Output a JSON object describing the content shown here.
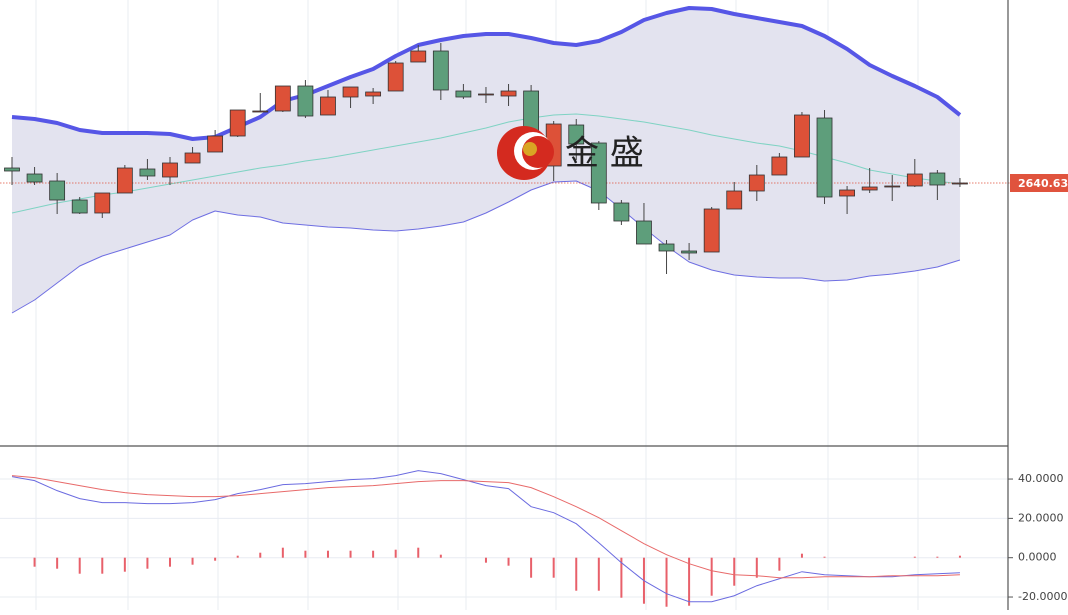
{
  "chart_data": [
    {
      "type": "candlestick",
      "watermark": "金 盛",
      "open": [
        2644.38,
        2642.88,
        2641.13,
        2636.38,
        2633.13,
        2638.13,
        2644.13,
        2642.13,
        2645.63,
        2648.38,
        2652.38,
        2658.38,
        2658.63,
        2664.88,
        2657.63,
        2662.13,
        2662.38,
        2663.63,
        2670.88,
        2673.63,
        2663.63,
        2662.63,
        2662.38,
        2663.63,
        2644.88,
        2655.13,
        2650.63,
        2635.63,
        2631.13,
        2625.38,
        2623.63,
        2623.38,
        2634.13,
        2638.63,
        2642.63,
        2647.13,
        2656.88,
        2637.38,
        2638.88,
        2639.63,
        2639.88,
        2643.13,
        2640.38
      ],
      "high": [
        2647.13,
        2644.63,
        2643.13,
        2637.13,
        2638.13,
        2645.13,
        2646.63,
        2647.13,
        2649.63,
        2653.88,
        2658.88,
        2663.13,
        2664.88,
        2666.38,
        2663.88,
        2664.63,
        2664.38,
        2671.13,
        2675.13,
        2675.63,
        2665.38,
        2664.63,
        2665.38,
        2665.13,
        2656.13,
        2656.63,
        2651.13,
        2636.38,
        2635.63,
        2626.38,
        2625.63,
        2634.63,
        2640.88,
        2645.13,
        2648.13,
        2658.38,
        2658.88,
        2639.88,
        2644.38,
        2642.63,
        2646.63,
        2643.88,
        2641.88
      ],
      "low": [
        2640.13,
        2640.13,
        2632.88,
        2632.88,
        2631.88,
        2638.13,
        2641.38,
        2640.13,
        2645.63,
        2648.38,
        2652.13,
        2658.38,
        2658.38,
        2656.88,
        2657.63,
        2659.38,
        2660.38,
        2663.63,
        2670.88,
        2661.38,
        2661.63,
        2660.63,
        2659.88,
        2644.88,
        2641.13,
        2646.38,
        2633.88,
        2630.13,
        2625.38,
        2617.88,
        2621.38,
        2623.38,
        2634.13,
        2636.13,
        2642.63,
        2647.13,
        2635.38,
        2632.88,
        2638.13,
        2636.13,
        2639.63,
        2636.38,
        2639.63
      ],
      "close": [
        2643.63,
        2640.88,
        2636.38,
        2633.13,
        2638.13,
        2644.38,
        2642.38,
        2645.63,
        2648.13,
        2652.38,
        2658.88,
        2658.63,
        2664.88,
        2657.38,
        2662.13,
        2664.63,
        2663.38,
        2670.63,
        2673.63,
        2663.88,
        2662.13,
        2662.88,
        2663.63,
        2645.38,
        2655.38,
        2650.38,
        2635.63,
        2631.13,
        2625.38,
        2623.63,
        2623.13,
        2634.13,
        2638.63,
        2642.63,
        2647.13,
        2657.63,
        2637.13,
        2638.88,
        2639.63,
        2639.88,
        2642.88,
        2640.13,
        2640.63
      ],
      "up_color": "#dd5138",
      "down_color": "#5e9e7b",
      "band_fill": "#e3e3ef",
      "ylim": [
        2575.13,
        2686.38
      ],
      "price_label": {
        "value": 2640.63,
        "label": "2640.630"
      },
      "price_label_color": "#e0533d",
      "series": [
        {
          "color": "#5656e6",
          "values": [
            2657.13,
            2656.63,
            2655.63,
            2653.88,
            2653.13,
            2653.13,
            2653.13,
            2652.88,
            2651.63,
            2652.13,
            2654.63,
            2657.13,
            2661.13,
            2662.63,
            2664.88,
            2667.13,
            2669.13,
            2672.38,
            2675.13,
            2676.38,
            2677.38,
            2677.88,
            2677.88,
            2676.88,
            2675.63,
            2675.13,
            2676.13,
            2678.38,
            2681.38,
            2683.13,
            2684.38,
            2684.13,
            2682.88,
            2681.88,
            2680.88,
            2679.88,
            2677.38,
            2674.13,
            2670.13,
            2667.38,
            2664.88,
            2662.13,
            2657.63
          ]
        },
        {
          "color": "#7fd3c3",
          "values": [
            2633.13,
            2634.38,
            2635.63,
            2636.63,
            2637.63,
            2638.38,
            2639.38,
            2640.38,
            2641.38,
            2642.38,
            2643.38,
            2644.38,
            2645.13,
            2646.13,
            2646.88,
            2647.88,
            2648.88,
            2649.88,
            2650.88,
            2651.88,
            2653.13,
            2654.38,
            2655.88,
            2656.88,
            2657.63,
            2657.88,
            2657.38,
            2656.63,
            2655.88,
            2654.88,
            2653.88,
            2652.63,
            2651.63,
            2650.63,
            2649.88,
            2648.63,
            2647.13,
            2645.63,
            2643.88,
            2642.88,
            2641.88,
            2641.13,
            2640.38
          ]
        },
        {
          "color": "#6e6ee2",
          "values": [
            2608.13,
            2611.38,
            2615.63,
            2619.88,
            2622.38,
            2624.13,
            2625.88,
            2627.63,
            2631.38,
            2633.63,
            2632.63,
            2632.13,
            2630.63,
            2630.13,
            2629.63,
            2629.38,
            2628.88,
            2628.63,
            2629.13,
            2629.88,
            2630.88,
            2633.13,
            2635.88,
            2638.88,
            2640.88,
            2641.13,
            2638.63,
            2634.13,
            2629.38,
            2624.88,
            2620.88,
            2618.88,
            2617.63,
            2617.13,
            2616.88,
            2616.88,
            2616.13,
            2616.38,
            2617.38,
            2617.88,
            2618.63,
            2619.63,
            2621.38
          ]
        }
      ]
    },
    {
      "type": "macd",
      "ylim": [
        -26.6,
        56.3
      ],
      "grid": true,
      "yticks": [
        {
          "value": 40,
          "label": "40.0000"
        },
        {
          "value": 20,
          "label": "20.0000"
        },
        {
          "value": 0,
          "label": "0.0000"
        },
        {
          "value": -20,
          "label": "-20.0000"
        }
      ],
      "series": [
        {
          "color": "#6b6be0",
          "values": [
            41.22,
            39.19,
            34.1,
            30.03,
            27.99,
            27.99,
            27.48,
            27.48,
            27.99,
            29.52,
            32.57,
            34.61,
            37.15,
            37.66,
            38.68,
            39.69,
            40.2,
            41.73,
            44.27,
            42.75,
            39.69,
            36.64,
            35.11,
            25.95,
            22.9,
            17.3,
            7.63,
            -2.54,
            -11.7,
            -18.32,
            -22.39,
            -22.39,
            -19.34,
            -14.25,
            -10.69,
            -7.12,
            -8.65,
            -9.16,
            -9.67,
            -9.67,
            -8.65,
            -8.14,
            -7.63
          ]
        },
        {
          "color": "#e86a6a",
          "values": [
            41.73,
            40.71,
            38.68,
            36.64,
            34.61,
            33.08,
            32.06,
            31.55,
            31.04,
            31.04,
            31.55,
            32.57,
            33.59,
            34.61,
            35.62,
            36.13,
            36.64,
            37.66,
            38.68,
            39.19,
            39.19,
            38.68,
            38.17,
            35.62,
            31.04,
            25.95,
            20.36,
            13.74,
            7.12,
            1.53,
            -3.05,
            -6.62,
            -8.65,
            -9.16,
            -10.18,
            -10.18,
            -9.67,
            -9.67,
            -9.67,
            -9.16,
            -9.16,
            -9.16,
            -8.65
          ]
        }
      ],
      "histogram": {
        "color": "#e8606a",
        "values": [
          0,
          -4.58,
          -5.6,
          -8.14,
          -8.14,
          -7.12,
          -5.6,
          -4.58,
          -3.56,
          -1.53,
          1.02,
          2.54,
          5.09,
          3.56,
          3.56,
          3.56,
          3.56,
          4.07,
          5.09,
          1.53,
          0,
          -2.54,
          -4.07,
          -10.18,
          -10.18,
          -16.79,
          -16.79,
          -20.36,
          -23.41,
          -24.94,
          -24.43,
          -19.34,
          -14.25,
          -10.18,
          -6.62,
          2.04,
          0.51,
          0,
          0,
          0,
          0.51,
          0.51,
          1.02
        ]
      }
    }
  ]
}
